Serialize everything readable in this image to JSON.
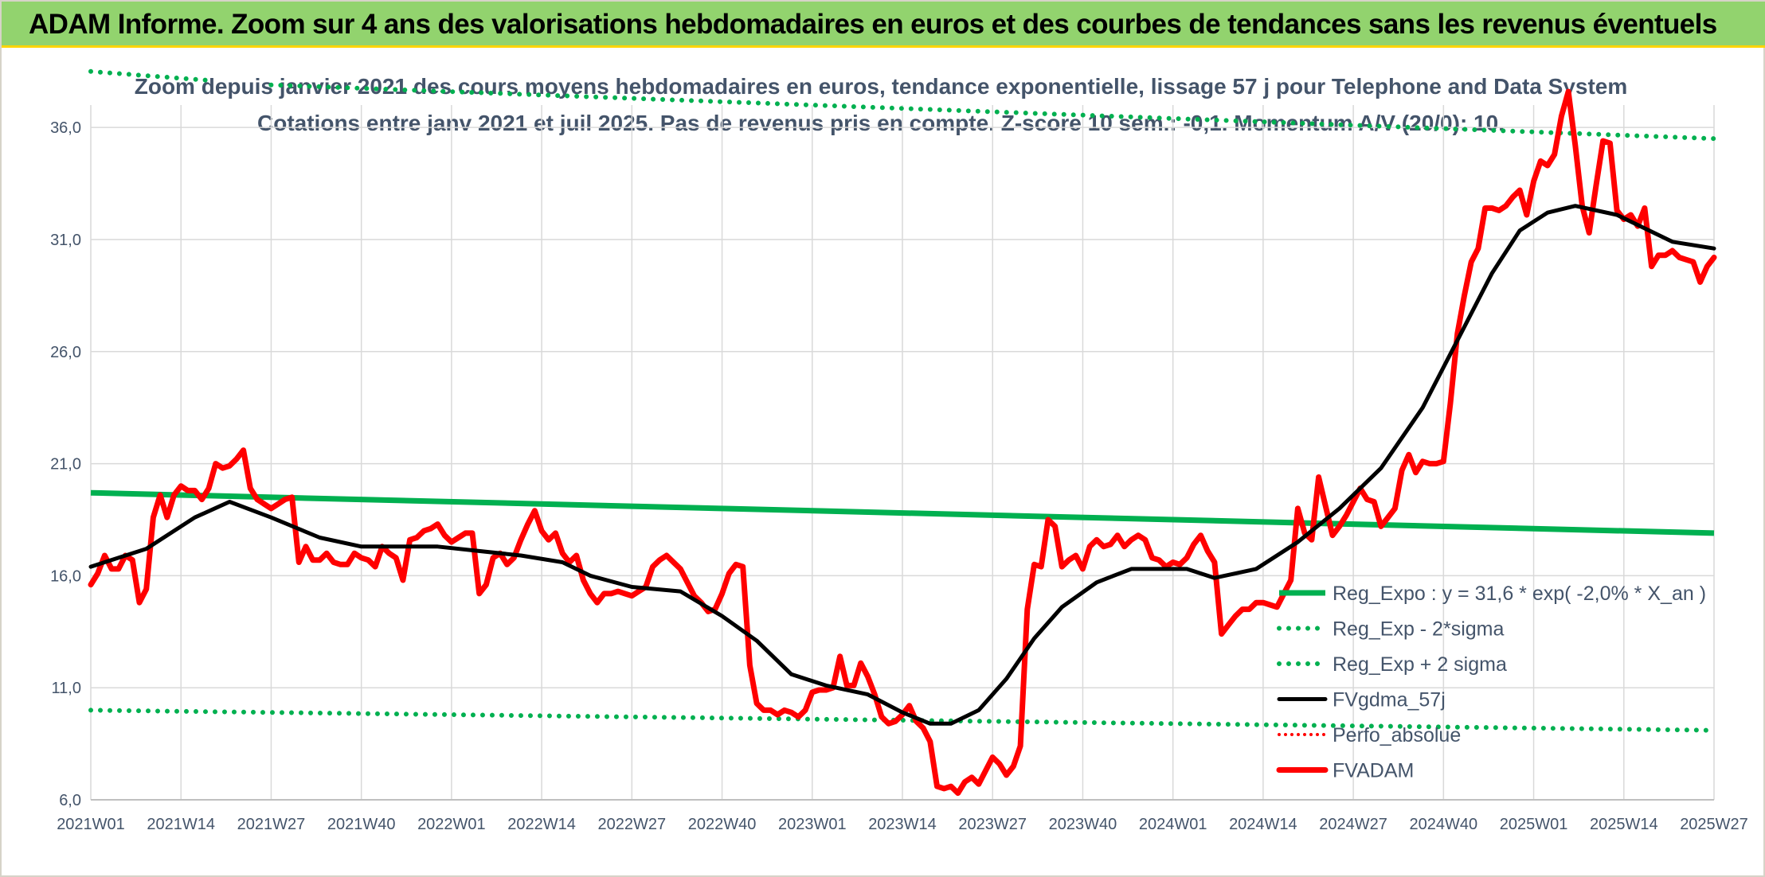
{
  "banner": {
    "title": "ADAM Informe. Zoom sur 4 ans des valorisations hebdomadaires en euros et des courbes de tendances sans les revenus éventuels"
  },
  "colors": {
    "banner_bg": "#92d36e",
    "banner_border": "#ffd400",
    "text": "#44546a",
    "grid": "#d9d9d9",
    "green": "#00b050",
    "black": "#000000",
    "red": "#ff0000"
  },
  "chart_data": {
    "type": "line",
    "title": "Zoom depuis janvier 2021 des cours moyens hebdomadaires en euros, tendance exponentielle, lissage 57 j pour Telephone and Data System",
    "subtitle": "Cotations entre janv 2021 et juil 2025. Pas de revenus pris en compte. Z-score 10 sem.: -0,1. Momentum A/V (20/0): 10.",
    "xlabel": "",
    "ylabel": "",
    "ylim": [
      6,
      37
    ],
    "y_ticks": [
      "6,0",
      "11,0",
      "16,0",
      "21,0",
      "26,0",
      "31,0",
      "36,0"
    ],
    "y_tick_values": [
      6,
      11,
      16,
      21,
      26,
      31,
      36
    ],
    "x_ticks": [
      "2021W01",
      "2021W14",
      "2021W27",
      "2021W40",
      "2022W01",
      "2022W14",
      "2022W27",
      "2022W40",
      "2023W01",
      "2023W14",
      "2023W27",
      "2023W40",
      "2024W01",
      "2024W14",
      "2024W27",
      "2024W40",
      "2025W01",
      "2025W14",
      "2025W27"
    ],
    "x_tick_index": [
      0,
      13,
      26,
      39,
      52,
      65,
      78,
      91,
      104,
      117,
      130,
      143,
      156,
      169,
      182,
      195,
      208,
      221,
      234
    ],
    "grid": true,
    "legend_position": "right-lower",
    "series": [
      {
        "name": "Reg_Expo : y = 31,6 * exp( -2,0% *  X_an )",
        "color": "#00b050",
        "style": "solid",
        "x": [
          0,
          234
        ],
        "values": [
          19.7,
          17.9
        ]
      },
      {
        "name": "Reg_Exp - 2*sigma",
        "color": "#00b050",
        "style": "dotted",
        "x": [
          0,
          234
        ],
        "values": [
          10.0,
          9.1
        ]
      },
      {
        "name": "Reg_Exp + 2 sigma",
        "color": "#00b050",
        "style": "dotted",
        "x": [
          0,
          17,
          26,
          234
        ],
        "values": [
          38.5,
          38.1,
          37.9,
          35.5
        ],
        "breaks_after": [
          17
        ]
      },
      {
        "name": "FVgdma_57j",
        "color": "#000000",
        "style": "solid",
        "x": [
          0,
          8,
          15,
          20,
          26,
          33,
          39,
          50,
          62,
          68,
          72,
          78,
          85,
          91,
          96,
          101,
          106,
          112,
          117,
          121,
          124,
          128,
          132,
          136,
          140,
          145,
          150,
          158,
          162,
          168,
          174,
          180,
          186,
          192,
          197,
          202,
          206,
          210,
          214,
          220,
          228,
          234
        ],
        "values": [
          16.4,
          17.2,
          18.6,
          19.3,
          18.6,
          17.7,
          17.3,
          17.3,
          16.9,
          16.6,
          16.0,
          15.5,
          15.3,
          14.2,
          13.1,
          11.6,
          11.1,
          10.7,
          9.9,
          9.4,
          9.4,
          10.0,
          11.4,
          13.2,
          14.6,
          15.7,
          16.3,
          16.3,
          15.9,
          16.3,
          17.5,
          19.0,
          20.8,
          23.5,
          26.5,
          29.5,
          31.4,
          32.2,
          32.5,
          32.1,
          30.9,
          30.6
        ]
      },
      {
        "name": "Perfo_absolue",
        "color": "#ff0000",
        "style": "dotted",
        "x": [],
        "values": []
      },
      {
        "name": "FVADAM",
        "color": "#ff0000",
        "style": "solid",
        "x": [
          0,
          1,
          2,
          3,
          4,
          5,
          6,
          7,
          8,
          9,
          10,
          11,
          12,
          13,
          14,
          15,
          16,
          17,
          18,
          19,
          20,
          21,
          22,
          23,
          24,
          25,
          26,
          27,
          28,
          29,
          30,
          31,
          32,
          33,
          34,
          35,
          36,
          37,
          38,
          39,
          40,
          41,
          42,
          43,
          44,
          45,
          46,
          47,
          48,
          49,
          50,
          51,
          52,
          53,
          54,
          55,
          56,
          57,
          58,
          59,
          60,
          61,
          62,
          63,
          64,
          65,
          66,
          67,
          68,
          69,
          70,
          71,
          72,
          73,
          74,
          75,
          76,
          77,
          78,
          79,
          80,
          81,
          82,
          83,
          84,
          85,
          86,
          87,
          88,
          89,
          90,
          91,
          92,
          93,
          94,
          95,
          96,
          97,
          98,
          99,
          100,
          101,
          102,
          103,
          104,
          105,
          106,
          107,
          108,
          109,
          110,
          111,
          112,
          113,
          114,
          115,
          116,
          117,
          118,
          119,
          120,
          121,
          122,
          123,
          124,
          125,
          126,
          127,
          128,
          129,
          130,
          131,
          132,
          133,
          134,
          135,
          136,
          137,
          138,
          139,
          140,
          141,
          142,
          143,
          144,
          145,
          146,
          147,
          148,
          149,
          150,
          151,
          152,
          153,
          154,
          155,
          156,
          157,
          158,
          159,
          160,
          161,
          162,
          163,
          164,
          165,
          166,
          167,
          168,
          169,
          170,
          171,
          172,
          173,
          174,
          175,
          176,
          177,
          178,
          179,
          180,
          181,
          182,
          183,
          184,
          185,
          186,
          187,
          188,
          189,
          190,
          191,
          192,
          193,
          194,
          195,
          196,
          197,
          198,
          199,
          200,
          201,
          202,
          203,
          204,
          205,
          206,
          207,
          208,
          209,
          210,
          211,
          212,
          213,
          214,
          215,
          216,
          217,
          218,
          219,
          220,
          221,
          222,
          223,
          224,
          225,
          226,
          227,
          228,
          229,
          230,
          231,
          232,
          233,
          234
        ],
        "values": [
          15.6,
          16.1,
          16.9,
          16.3,
          16.3,
          16.9,
          16.7,
          14.8,
          15.4,
          18.6,
          19.6,
          18.6,
          19.6,
          20.0,
          19.8,
          19.8,
          19.4,
          19.9,
          21.0,
          20.8,
          20.9,
          21.2,
          21.6,
          19.9,
          19.4,
          19.2,
          19.0,
          19.2,
          19.4,
          19.5,
          16.6,
          17.3,
          16.7,
          16.7,
          17.0,
          16.6,
          16.5,
          16.5,
          17.0,
          16.8,
          16.7,
          16.4,
          17.3,
          17.0,
          16.8,
          15.8,
          17.6,
          17.7,
          18.0,
          18.1,
          18.3,
          17.8,
          17.5,
          17.7,
          17.9,
          17.9,
          15.2,
          15.6,
          16.8,
          17.0,
          16.5,
          16.8,
          17.6,
          18.3,
          18.9,
          18.0,
          17.6,
          17.9,
          17.0,
          16.6,
          16.9,
          15.8,
          15.2,
          14.8,
          15.2,
          15.2,
          15.3,
          15.2,
          15.1,
          15.3,
          15.5,
          16.4,
          16.7,
          16.9,
          16.6,
          16.3,
          15.7,
          15.1,
          14.8,
          14.4,
          14.5,
          15.2,
          16.1,
          16.5,
          16.4,
          12.0,
          10.3,
          10.0,
          10.0,
          9.8,
          10.0,
          9.9,
          9.7,
          10.0,
          10.8,
          10.9,
          10.9,
          11.0,
          12.4,
          11.1,
          11.1,
          12.1,
          11.5,
          10.7,
          9.7,
          9.4,
          9.5,
          9.8,
          10.2,
          9.5,
          9.2,
          8.6,
          6.6,
          6.5,
          6.6,
          6.3,
          6.8,
          7.0,
          6.7,
          7.3,
          7.9,
          7.6,
          7.1,
          7.5,
          8.4,
          14.5,
          16.5,
          16.4,
          18.5,
          18.2,
          16.4,
          16.7,
          16.9,
          16.3,
          17.3,
          17.6,
          17.3,
          17.4,
          17.8,
          17.3,
          17.6,
          17.8,
          17.6,
          16.8,
          16.7,
          16.4,
          16.6,
          16.5,
          16.8,
          17.4,
          17.8,
          17.1,
          16.6,
          13.4,
          13.8,
          14.2,
          14.5,
          14.5,
          14.8,
          14.8,
          14.7,
          14.6,
          15.2,
          15.8,
          19.0,
          17.9,
          17.6,
          20.4,
          19.1,
          17.8,
          18.2,
          18.7,
          19.3,
          19.9,
          19.4,
          19.3,
          18.2,
          18.6,
          19.0,
          20.7,
          21.4,
          20.6,
          21.1,
          21.0,
          21.0,
          21.1,
          23.7,
          26.8,
          28.5,
          30.0,
          30.6,
          32.4,
          32.4,
          32.3,
          32.5,
          32.9,
          33.2,
          32.1,
          33.6,
          34.5,
          34.3,
          34.8,
          36.5,
          37.6,
          35.2,
          32.5,
          31.3,
          33.4,
          35.4,
          35.3,
          32.3,
          31.9,
          32.1,
          31.6,
          32.4,
          29.8,
          30.3,
          30.3,
          30.5,
          30.2,
          30.1,
          30.0,
          29.1,
          29.8,
          30.2
        ]
      }
    ]
  }
}
